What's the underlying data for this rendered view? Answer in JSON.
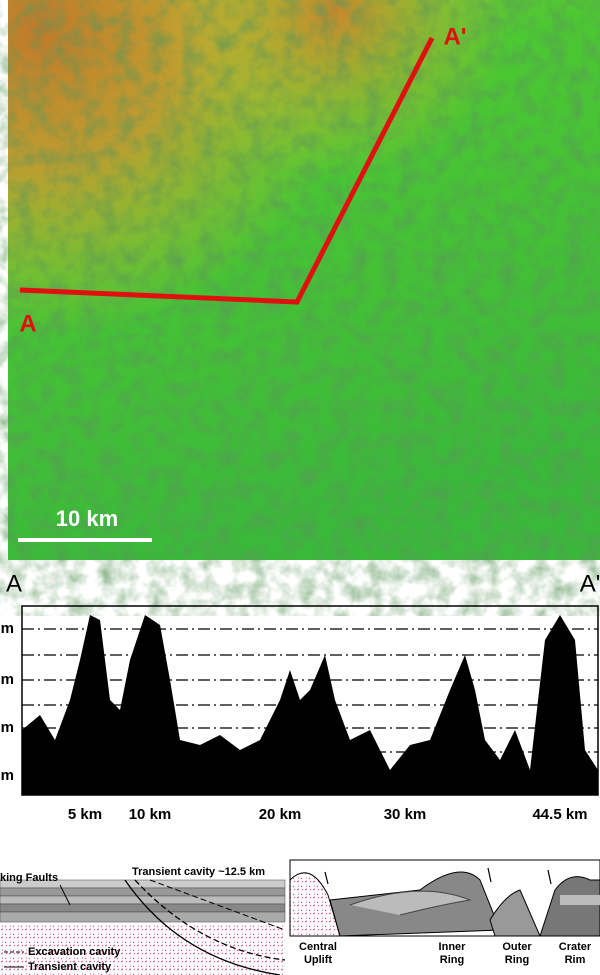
{
  "map": {
    "start_label": "A",
    "end_label": "A'",
    "scale_bar": "10 km"
  },
  "profile": {
    "start_label": "A",
    "end_label": "A'",
    "y_labels": [
      "m",
      "m",
      "m",
      "m"
    ],
    "x_labels": [
      "5 km",
      "10 km",
      "20 km",
      "30 km",
      "44.5 km"
    ]
  },
  "diagram": {
    "left": {
      "faults": "king Faults",
      "transient_top": "Transient cavity ~12.5 km",
      "excavation": "Excavation cavity",
      "transient": "Transient cavity"
    },
    "right": {
      "labels": [
        [
          "Central",
          "Uplift"
        ],
        [
          "Inner",
          "Ring"
        ],
        [
          "Outer",
          "Ring"
        ],
        [
          "Crater",
          "Rim"
        ]
      ]
    }
  }
}
